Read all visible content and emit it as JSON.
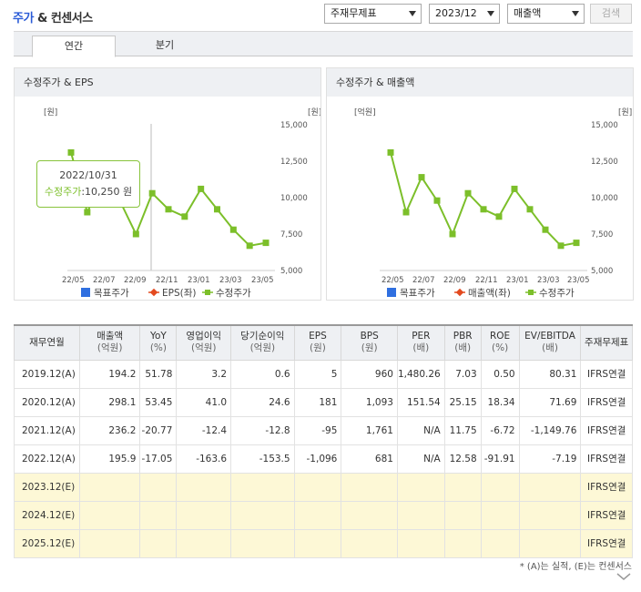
{
  "header": {
    "title_blue": "주가",
    "title_amp": "&",
    "title_rest": "컨센서스"
  },
  "controls": {
    "report_select": "주재무제표",
    "period_select": "2023/12",
    "metric_select": "매출액",
    "search_label": "검색"
  },
  "tabs": [
    {
      "label": "연간",
      "active": true
    },
    {
      "label": "분기",
      "active": false
    }
  ],
  "colors": {
    "accent_blue": "#2a5bd7",
    "line_green": "#7cbf2a",
    "estimate_bg": "#fdf8d6"
  },
  "charts": [
    {
      "title": "수정주가 & EPS",
      "left_unit": "[원]",
      "right_unit": "[원]",
      "x_ticks": [
        "22/05",
        "22/07",
        "22/09",
        "22/11",
        "23/01",
        "23/03",
        "23/05"
      ],
      "right_ticks": [
        "15,000",
        "12,500",
        "10,000",
        "7,500",
        "5,000"
      ],
      "legend": [
        {
          "label": "목표주가",
          "icon": "square-blue-icon"
        },
        {
          "label": "EPS(좌)",
          "icon": "diamond-red-icon"
        },
        {
          "label": "수정주가",
          "icon": "square-green-icon"
        }
      ],
      "tooltip": {
        "date": "2022/10/31",
        "label": "수정주가",
        "value": ":10,250 원"
      }
    },
    {
      "title": "수정주가 & 매출액",
      "left_unit": "[억원]",
      "right_unit": "[원]",
      "x_ticks": [
        "22/05",
        "22/07",
        "22/09",
        "22/11",
        "23/01",
        "23/03",
        "23/05"
      ],
      "right_ticks": [
        "15,000",
        "12,500",
        "10,000",
        "7,500",
        "5,000"
      ],
      "legend": [
        {
          "label": "목표주가",
          "icon": "square-blue-icon"
        },
        {
          "label": "매출액(좌)",
          "icon": "diamond-red-icon"
        },
        {
          "label": "수정주가",
          "icon": "square-green-icon"
        }
      ]
    }
  ],
  "chart_data": {
    "type": "line",
    "y_axis": "right",
    "ylim": [
      5000,
      15000
    ],
    "series": [
      {
        "name": "수정주가",
        "values": [
          13100,
          9000,
          11400,
          9800,
          7500,
          10300,
          9200,
          8700,
          10600,
          9200,
          7800,
          6700,
          6900
        ]
      }
    ]
  },
  "table": {
    "headers": [
      {
        "name": "재무연월",
        "unit": ""
      },
      {
        "name": "매출액",
        "unit": "(억원)"
      },
      {
        "name": "YoY",
        "unit": "(%)"
      },
      {
        "name": "영업이익",
        "unit": "(억원)"
      },
      {
        "name": "당기순이익",
        "unit": "(억원)"
      },
      {
        "name": "EPS",
        "unit": "(원)"
      },
      {
        "name": "BPS",
        "unit": "(원)"
      },
      {
        "name": "PER",
        "unit": "(배)"
      },
      {
        "name": "PBR",
        "unit": "(배)"
      },
      {
        "name": "ROE",
        "unit": "(%)"
      },
      {
        "name": "EV/EBITDA",
        "unit": "(배)"
      },
      {
        "name": "주재무제표",
        "unit": ""
      }
    ],
    "rows": [
      [
        "2019.12(A)",
        "194.2",
        "51.78",
        "3.2",
        "0.6",
        "5",
        "960",
        "1,480.26",
        "7.03",
        "0.50",
        "80.31",
        "IFRS연결"
      ],
      [
        "2020.12(A)",
        "298.1",
        "53.45",
        "41.0",
        "24.6",
        "181",
        "1,093",
        "151.54",
        "25.15",
        "18.34",
        "71.69",
        "IFRS연결"
      ],
      [
        "2021.12(A)",
        "236.2",
        "-20.77",
        "-12.4",
        "-12.8",
        "-95",
        "1,761",
        "N/A",
        "11.75",
        "-6.72",
        "-1,149.76",
        "IFRS연결"
      ],
      [
        "2022.12(A)",
        "195.9",
        "-17.05",
        "-163.6",
        "-153.5",
        "-1,096",
        "681",
        "N/A",
        "12.58",
        "-91.91",
        "-7.19",
        "IFRS연결"
      ],
      [
        "2023.12(E)",
        "",
        "",
        "",
        "",
        "",
        "",
        "",
        "",
        "",
        "",
        "IFRS연결"
      ],
      [
        "2024.12(E)",
        "",
        "",
        "",
        "",
        "",
        "",
        "",
        "",
        "",
        "",
        "IFRS연결"
      ],
      [
        "2025.12(E)",
        "",
        "",
        "",
        "",
        "",
        "",
        "",
        "",
        "",
        "",
        "IFRS연결"
      ]
    ]
  },
  "footnote": "* (A)는 실적, (E)는 컨센서스"
}
